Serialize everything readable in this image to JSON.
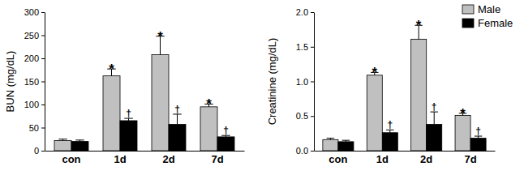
{
  "chart_data": [
    {
      "type": "bar",
      "y_label": "BUN (mg/dL)",
      "categories": [
        "con",
        "1d",
        "2d",
        "7d"
      ],
      "series": [
        {
          "name": "Male",
          "color": "#c0c0c0",
          "values": [
            22,
            162,
            208,
            95
          ],
          "errors": [
            3,
            15,
            40,
            6
          ],
          "significance": [
            null,
            "*",
            "*",
            "*"
          ]
        },
        {
          "name": "Female",
          "color": "#000000",
          "values": [
            20,
            65,
            57,
            30
          ],
          "errors": [
            3,
            5,
            22,
            3
          ],
          "significance": [
            null,
            "†",
            "†",
            "†"
          ]
        }
      ],
      "ylim": [
        0,
        300
      ],
      "yticks": [
        0,
        50,
        100,
        150,
        200,
        250,
        300
      ]
    },
    {
      "type": "bar",
      "y_label": "Creatinine (mg/dL)",
      "categories": [
        "con",
        "1d",
        "2d",
        "7d"
      ],
      "series": [
        {
          "name": "Male",
          "color": "#c0c0c0",
          "values": [
            0.16,
            1.09,
            1.61,
            0.51
          ],
          "errors": [
            0.02,
            0.04,
            0.2,
            0.03
          ],
          "significance": [
            null,
            "*",
            "*",
            "*"
          ]
        },
        {
          "name": "Female",
          "color": "#000000",
          "values": [
            0.13,
            0.26,
            0.38,
            0.18
          ],
          "errors": [
            0.02,
            0.04,
            0.18,
            0.03
          ],
          "significance": [
            null,
            "†",
            "†",
            "†"
          ]
        }
      ],
      "ylim": [
        0,
        2
      ],
      "yticks": [
        {
          "value": 0,
          "label": "0.0"
        },
        0.5,
        {
          "value": 1,
          "label": "1.0"
        },
        1.5,
        {
          "value": 2,
          "label": "2.0"
        }
      ],
      "legend": "top-right"
    }
  ]
}
